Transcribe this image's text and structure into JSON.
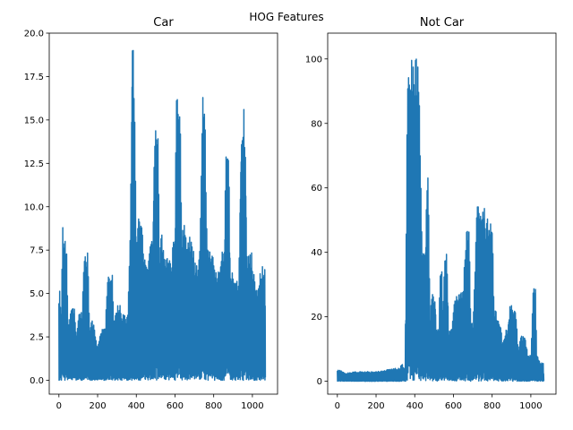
{
  "figure": {
    "suptitle": "HOG Features",
    "line_color": "#1f77b4"
  },
  "chart_data": [
    {
      "type": "line",
      "title": "Car",
      "xlabel": "",
      "ylabel": "",
      "xlim": [
        -50,
        1130
      ],
      "ylim": [
        -0.8,
        20.0
      ],
      "xticks": [
        0,
        200,
        400,
        600,
        800,
        1000
      ],
      "xtick_labels": [
        "0",
        "200",
        "400",
        "600",
        "800",
        "1000"
      ],
      "yticks": [
        0.0,
        2.5,
        5.0,
        7.5,
        10.0,
        12.5,
        15.0,
        17.5,
        20.0
      ],
      "ytick_labels": [
        "0.0",
        "2.5",
        "5.0",
        "7.5",
        "10.0",
        "12.5",
        "15.0",
        "17.5",
        "20.0"
      ],
      "grid": false,
      "n_points": 1068,
      "envelope": [
        [
          0,
          5.2
        ],
        [
          5,
          5.2
        ],
        [
          12,
          3.5
        ],
        [
          18,
          8.8
        ],
        [
          30,
          8.8
        ],
        [
          38,
          8.4
        ],
        [
          48,
          3.0
        ],
        [
          60,
          4.2
        ],
        [
          80,
          4.2
        ],
        [
          90,
          2.5
        ],
        [
          100,
          3.9
        ],
        [
          120,
          3.9
        ],
        [
          132,
          7.5
        ],
        [
          150,
          7.5
        ],
        [
          158,
          3.0
        ],
        [
          170,
          4.0
        ],
        [
          185,
          3.0
        ],
        [
          200,
          2.0
        ],
        [
          215,
          3.0
        ],
        [
          240,
          3.0
        ],
        [
          250,
          5.8
        ],
        [
          262,
          6.4
        ],
        [
          275,
          6.4
        ],
        [
          285,
          3.5
        ],
        [
          295,
          4.4
        ],
        [
          315,
          4.4
        ],
        [
          325,
          3.8
        ],
        [
          355,
          3.8
        ],
        [
          368,
          8.1
        ],
        [
          378,
          19.1
        ],
        [
          388,
          19.1
        ],
        [
          393,
          15.0
        ],
        [
          400,
          8.0
        ],
        [
          410,
          9.4
        ],
        [
          430,
          9.4
        ],
        [
          440,
          7.0
        ],
        [
          460,
          7.0
        ],
        [
          470,
          8.0
        ],
        [
          485,
          8.0
        ],
        [
          495,
          15.1
        ],
        [
          512,
          15.1
        ],
        [
          520,
          7.5
        ],
        [
          530,
          8.7
        ],
        [
          545,
          7.1
        ],
        [
          580,
          7.1
        ],
        [
          590,
          8.2
        ],
        [
          600,
          8.2
        ],
        [
          605,
          16.3
        ],
        [
          628,
          16.3
        ],
        [
          635,
          8.3
        ],
        [
          640,
          9.3
        ],
        [
          655,
          9.3
        ],
        [
          660,
          8.3
        ],
        [
          690,
          8.3
        ],
        [
          700,
          7.0
        ],
        [
          720,
          7.0
        ],
        [
          730,
          8.0
        ],
        [
          742,
          16.9
        ],
        [
          756,
          16.9
        ],
        [
          762,
          10.0
        ],
        [
          770,
          7.9
        ],
        [
          790,
          7.9
        ],
        [
          800,
          6.6
        ],
        [
          820,
          6.6
        ],
        [
          840,
          7.4
        ],
        [
          855,
          7.4
        ],
        [
          862,
          14.4
        ],
        [
          878,
          14.4
        ],
        [
          885,
          6.3
        ],
        [
          900,
          6.3
        ],
        [
          915,
          5.8
        ],
        [
          930,
          5.8
        ],
        [
          942,
          15.7
        ],
        [
          962,
          15.7
        ],
        [
          972,
          7.5
        ],
        [
          995,
          7.5
        ],
        [
          1002,
          6.6
        ],
        [
          1010,
          6.6
        ],
        [
          1025,
          5.1
        ],
        [
          1040,
          6.6
        ],
        [
          1068,
          6.6
        ]
      ]
    },
    {
      "type": "line",
      "title": "Not Car",
      "xlabel": "",
      "ylabel": "",
      "xlim": [
        -50,
        1130
      ],
      "ylim": [
        -4.0,
        108.0
      ],
      "xticks": [
        0,
        200,
        400,
        600,
        800,
        1000
      ],
      "xtick_labels": [
        "0",
        "200",
        "400",
        "600",
        "800",
        "1000"
      ],
      "yticks": [
        0,
        20,
        40,
        60,
        80,
        100
      ],
      "ytick_labels": [
        "0",
        "20",
        "40",
        "60",
        "80",
        "100"
      ],
      "grid": false,
      "n_points": 1068,
      "envelope": [
        [
          0,
          3.5
        ],
        [
          20,
          3.5
        ],
        [
          40,
          2.5
        ],
        [
          100,
          3.0
        ],
        [
          200,
          3.0
        ],
        [
          250,
          3.5
        ],
        [
          300,
          4.0
        ],
        [
          320,
          4.0
        ],
        [
          335,
          5.5
        ],
        [
          350,
          3.5
        ],
        [
          362,
          98.0
        ],
        [
          372,
          98.0
        ],
        [
          378,
          101.0
        ],
        [
          390,
          101.0
        ],
        [
          395,
          103.0
        ],
        [
          420,
          103.0
        ],
        [
          428,
          70.0
        ],
        [
          440,
          40.0
        ],
        [
          455,
          40.0
        ],
        [
          465,
          71.0
        ],
        [
          470,
          71.0
        ],
        [
          478,
          20.0
        ],
        [
          490,
          28.0
        ],
        [
          505,
          28.0
        ],
        [
          510,
          17.0
        ],
        [
          525,
          17.0
        ],
        [
          530,
          34.0
        ],
        [
          540,
          34.0
        ],
        [
          545,
          22.0
        ],
        [
          555,
          42.0
        ],
        [
          565,
          42.0
        ],
        [
          575,
          16.0
        ],
        [
          590,
          16.0
        ],
        [
          610,
          28.0
        ],
        [
          620,
          28.0
        ],
        [
          635,
          29.0
        ],
        [
          650,
          29.0
        ],
        [
          670,
          50.0
        ],
        [
          680,
          50.0
        ],
        [
          690,
          18.0
        ],
        [
          700,
          18.0
        ],
        [
          710,
          31.0
        ],
        [
          720,
          56.0
        ],
        [
          740,
          56.0
        ],
        [
          750,
          54.0
        ],
        [
          760,
          54.0
        ],
        [
          770,
          51.0
        ],
        [
          780,
          51.0
        ],
        [
          790,
          53.0
        ],
        [
          800,
          53.0
        ],
        [
          810,
          22.0
        ],
        [
          820,
          22.0
        ],
        [
          840,
          19.0
        ],
        [
          855,
          12.0
        ],
        [
          870,
          16.0
        ],
        [
          880,
          16.0
        ],
        [
          890,
          24.0
        ],
        [
          920,
          24.0
        ],
        [
          935,
          10.0
        ],
        [
          950,
          14.0
        ],
        [
          970,
          14.0
        ],
        [
          985,
          8.0
        ],
        [
          1000,
          8.0
        ],
        [
          1012,
          29.0
        ],
        [
          1025,
          29.0
        ],
        [
          1030,
          9.0
        ],
        [
          1045,
          6.0
        ],
        [
          1068,
          6.0
        ]
      ]
    }
  ]
}
